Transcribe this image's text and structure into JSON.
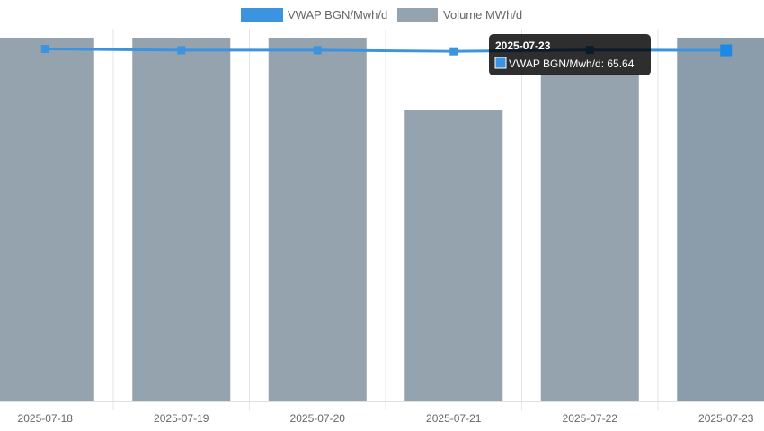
{
  "chart_data": {
    "type": "bar",
    "categories": [
      "2025-07-18",
      "2025-07-19",
      "2025-07-20",
      "2025-07-21",
      "2025-07-22",
      "2025-07-23"
    ],
    "series": [
      {
        "name": "VWAP BGN/Mwh/d",
        "type": "line",
        "axis": "right",
        "color": "#3c94e0",
        "values": [
          65.9,
          65.66,
          65.66,
          65.45,
          65.7,
          65.64
        ]
      },
      {
        "name": "Volume MWh/d",
        "type": "bar",
        "axis": "left",
        "color": "#94a3ad",
        "values": [
          100,
          100,
          100,
          80,
          90,
          100
        ]
      }
    ],
    "ylim_left": [
      0,
      100
    ],
    "ylim_right": [
      0,
      68
    ],
    "grid": "vertical",
    "legend": "top-center",
    "xlabel": "",
    "ylabel": ""
  },
  "tooltip": {
    "title": "2025-07-23",
    "label": "VWAP BGN/Mwh/d: 65.64",
    "category_index": 5
  }
}
